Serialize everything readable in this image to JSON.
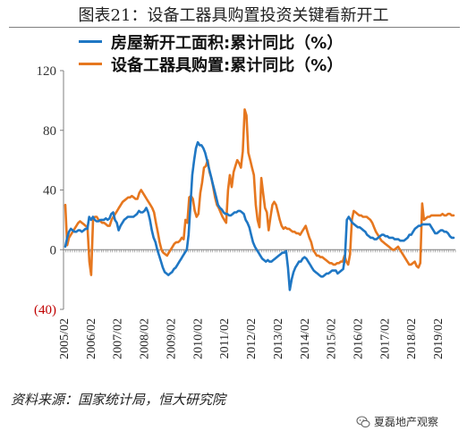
{
  "title": "图表21：设备工器具购置投资关键看新开工",
  "legend": {
    "items": [
      {
        "label": "房屋新开工面积:累计同比（%）",
        "color": "#1f77c4"
      },
      {
        "label": "设备工器具购置:累计同比（%）",
        "color": "#e6771f"
      }
    ]
  },
  "source": "资料来源：国家统计局，恒大研究院",
  "watermark": "夏磊地产观察",
  "chart_data": {
    "type": "line",
    "x_start": "2005-02",
    "x_tick_labels": [
      "2005/02",
      "2006/02",
      "2007/02",
      "2008/02",
      "2009/02",
      "2010/02",
      "2011/02",
      "2012/02",
      "2013/02",
      "2014/02",
      "2015/02",
      "2016/02",
      "2017/02",
      "2018/02",
      "2019/02"
    ],
    "y_tick_labels": [
      {
        "value": 120,
        "label": "120",
        "color": "#333333"
      },
      {
        "value": 80,
        "label": "80",
        "color": "#333333"
      },
      {
        "value": 40,
        "label": "40",
        "color": "#333333"
      },
      {
        "value": 0,
        "label": "0",
        "color": "#333333"
      },
      {
        "value": -40,
        "label": "(40)",
        "color": "#c00000"
      }
    ],
    "ylim": [
      -40,
      120
    ],
    "grid": false,
    "series": [
      {
        "name": "房屋新开工面积:累计同比（%）",
        "color": "#1f77c4",
        "values": [
          2,
          8,
          12,
          14,
          13,
          12,
          12,
          13,
          13,
          12,
          13,
          14,
          14,
          22,
          20,
          22,
          20,
          19,
          19,
          20,
          20,
          20,
          21,
          20,
          21,
          24,
          25,
          20,
          18,
          13,
          16,
          18,
          20,
          21,
          22,
          22,
          22,
          22,
          23,
          24,
          26,
          25,
          25,
          26,
          28,
          25,
          20,
          13,
          8,
          5,
          0,
          -4,
          -8,
          -12,
          -15,
          -16,
          -17,
          -16,
          -15,
          -13,
          -12,
          -10,
          -8,
          -6,
          -4,
          -2,
          0,
          10,
          30,
          50,
          60,
          68,
          72,
          70,
          70,
          68,
          65,
          60,
          55,
          50,
          45,
          40,
          35,
          30,
          28,
          27,
          25,
          24,
          24,
          23,
          23,
          24,
          25,
          25,
          26,
          26,
          25,
          24,
          20,
          18,
          15,
          10,
          5,
          2,
          0,
          -2,
          -4,
          -6,
          -7,
          -8,
          -7,
          -8,
          -8,
          -7,
          -6,
          -5,
          -4,
          -3,
          -2,
          -2,
          -1,
          -12,
          -27,
          -20,
          -15,
          -12,
          -10,
          -8,
          -8,
          -6,
          -5,
          -6,
          -8,
          -10,
          -12,
          -14,
          -15,
          -16,
          -17,
          -18,
          -18,
          -17,
          -16,
          -16,
          -15,
          -14,
          -14,
          -14,
          -16,
          -15,
          -14,
          -13,
          -5,
          20,
          22,
          20,
          18,
          17,
          16,
          15,
          15,
          14,
          13,
          12,
          10,
          9,
          8,
          8,
          7,
          7,
          8,
          9,
          10,
          10,
          9,
          9,
          8,
          8,
          8,
          7,
          7,
          7,
          6,
          6,
          6,
          7,
          8,
          10,
          10,
          12,
          14,
          15,
          16,
          16,
          17,
          17,
          17,
          17,
          17,
          15,
          13,
          11,
          11,
          12,
          13,
          13,
          12,
          12,
          11,
          9,
          8,
          8
        ]
      },
      {
        "name": "设备工器具购置:累计同比（%）",
        "color": "#e6771f",
        "values": [
          30,
          3,
          8,
          10,
          12,
          14,
          16,
          18,
          19,
          18,
          17,
          16,
          15,
          -8,
          -17,
          20,
          22,
          22,
          20,
          19,
          18,
          18,
          17,
          16,
          16,
          20,
          22,
          24,
          26,
          28,
          30,
          32,
          33,
          34,
          35,
          35,
          36,
          35,
          34,
          34,
          38,
          40,
          38,
          36,
          34,
          32,
          30,
          28,
          25,
          18,
          12,
          5,
          0,
          -2,
          -3,
          -4,
          -2,
          0,
          2,
          4,
          5,
          5,
          6,
          8,
          7,
          20,
          18,
          35,
          36,
          34,
          26,
          22,
          24,
          38,
          45,
          55,
          56,
          60,
          52,
          48,
          42,
          35,
          30,
          28,
          25,
          22,
          20,
          18,
          40,
          50,
          42,
          52,
          56,
          60,
          58,
          55,
          66,
          94,
          90,
          65,
          60,
          55,
          50,
          30,
          20,
          15,
          48,
          38,
          28,
          25,
          13,
          22,
          30,
          32,
          30,
          25,
          20,
          16,
          14,
          15,
          14,
          14,
          13,
          12,
          12,
          11,
          11,
          10,
          12,
          14,
          16,
          12,
          8,
          5,
          0,
          -2,
          -4,
          -4,
          -5,
          -5,
          -6,
          -7,
          -8,
          -9,
          -9,
          -10,
          -10,
          -9,
          -9,
          -8,
          -8,
          -4,
          -8,
          -10,
          -3,
          20,
          26,
          25,
          24,
          23,
          23,
          22,
          22,
          22,
          21,
          20,
          18,
          15,
          12,
          10,
          8,
          6,
          5,
          4,
          3,
          2,
          1,
          0,
          0,
          1,
          2,
          0,
          -2,
          -4,
          -6,
          -8,
          -10,
          -10,
          -9,
          -8,
          -11,
          -12,
          -9,
          31,
          20,
          21,
          22,
          22,
          23,
          23,
          23,
          23,
          23,
          23,
          24,
          23,
          23,
          24,
          24,
          23,
          23
        ]
      }
    ]
  }
}
